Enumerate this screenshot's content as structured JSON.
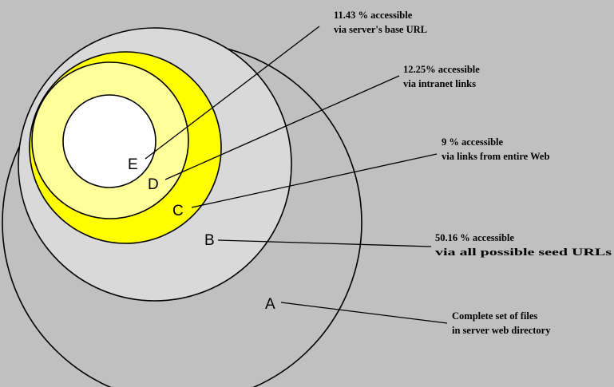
{
  "colors": {
    "background": "#c0c0c0",
    "circle_a": "#c0c0c0",
    "circle_b": "#d9d9d9",
    "circle_c": "#ffff00",
    "circle_d": "#ffff99",
    "circle_e": "#ffffff"
  },
  "regions": [
    {
      "id": "A",
      "letter": "A",
      "note_line1": "Complete set of files",
      "note_line2": "in server web directory"
    },
    {
      "id": "B",
      "letter": "B",
      "note_line1": "50.16 % accessible",
      "note_line2": "via all possible seed URLs"
    },
    {
      "id": "C",
      "letter": "C",
      "note_line1": "9 % accessible",
      "note_line2": "via links from entire Web"
    },
    {
      "id": "D",
      "letter": "D",
      "note_line1": "12.25% accessible",
      "note_line2": "via intranet links"
    },
    {
      "id": "E",
      "letter": "E",
      "note_line1": "11.43 % accessible",
      "note_line2": "via server's base URL"
    }
  ]
}
